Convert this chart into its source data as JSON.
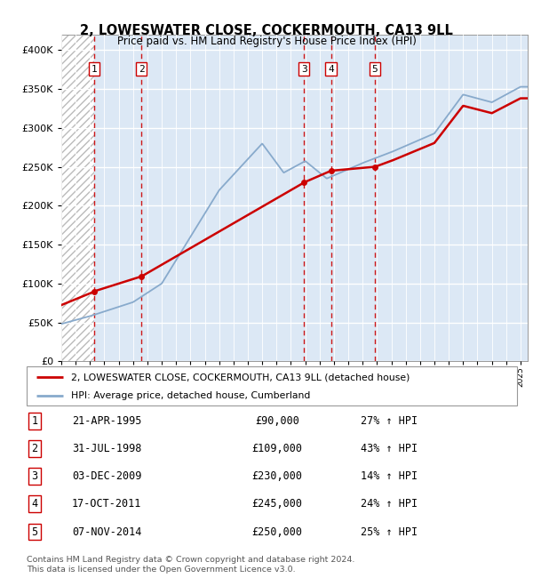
{
  "title": "2, LOWESWATER CLOSE, COCKERMOUTH, CA13 9LL",
  "subtitle": "Price paid vs. HM Land Registry's House Price Index (HPI)",
  "legend_line1": "2, LOWESWATER CLOSE, COCKERMOUTH, CA13 9LL (detached house)",
  "legend_line2": "HPI: Average price, detached house, Cumberland",
  "footer": "Contains HM Land Registry data © Crown copyright and database right 2024.\nThis data is licensed under the Open Government Licence v3.0.",
  "transactions": [
    {
      "num": 1,
      "date": "21-APR-1995",
      "price": 90000,
      "hpi_pct": "27% ↑ HPI",
      "year": 1995.3
    },
    {
      "num": 2,
      "date": "31-JUL-1998",
      "price": 109000,
      "hpi_pct": "43% ↑ HPI",
      "year": 1998.58
    },
    {
      "num": 3,
      "date": "03-DEC-2009",
      "price": 230000,
      "hpi_pct": "14% ↑ HPI",
      "year": 2009.92
    },
    {
      "num": 4,
      "date": "17-OCT-2011",
      "price": 245000,
      "hpi_pct": "24% ↑ HPI",
      "year": 2011.79
    },
    {
      "num": 5,
      "date": "07-NOV-2014",
      "price": 250000,
      "hpi_pct": "25% ↑ HPI",
      "year": 2014.85
    }
  ],
  "xlim": [
    1993.0,
    2025.5
  ],
  "ylim": [
    0,
    420000
  ],
  "yticks": [
    0,
    50000,
    100000,
    150000,
    200000,
    250000,
    300000,
    350000,
    400000
  ],
  "hatch_end_year": 1995.3,
  "property_color": "#cc0000",
  "hpi_color": "#88aacc",
  "vline_color": "#cc0000",
  "bg_main_color": "#dce8f5"
}
